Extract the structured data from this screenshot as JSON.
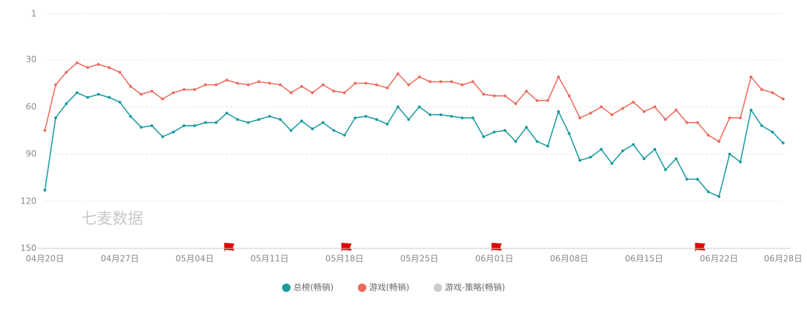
{
  "chart_data": {
    "type": "line",
    "watermark": "七麦数据",
    "categories": [
      "04月20日",
      null,
      null,
      null,
      null,
      null,
      null,
      "04月27日",
      null,
      null,
      null,
      null,
      null,
      null,
      "05月04日",
      null,
      null,
      null,
      null,
      null,
      null,
      "05月11日",
      null,
      null,
      null,
      null,
      null,
      null,
      "05月18日",
      null,
      null,
      null,
      null,
      null,
      null,
      "05月25日",
      null,
      null,
      null,
      null,
      null,
      null,
      "06月01日",
      null,
      null,
      null,
      null,
      null,
      null,
      "06月08日",
      null,
      null,
      null,
      null,
      null,
      null,
      "06月15日",
      null,
      null,
      null,
      null,
      null,
      null,
      "06月22日",
      null,
      null,
      null,
      null,
      null,
      "06月28日"
    ],
    "series": [
      {
        "name": "总榜(畅销)",
        "color": "#1a9ba0",
        "values": [
          113,
          67,
          58,
          51,
          54,
          52,
          54,
          57,
          66,
          73,
          72,
          79,
          76,
          72,
          72,
          70,
          70,
          64,
          68,
          70,
          68,
          66,
          68,
          75,
          69,
          74,
          70,
          75,
          78,
          67,
          66,
          68,
          71,
          60,
          68,
          60,
          65,
          65,
          66,
          67,
          67,
          79,
          76,
          75,
          82,
          73,
          82,
          85,
          63,
          77,
          94,
          92,
          87,
          96,
          88,
          84,
          93,
          87,
          100,
          93,
          106,
          106,
          114,
          117,
          90,
          95,
          62,
          72,
          76,
          83
        ]
      },
      {
        "name": "游戏(畅销)",
        "color": "#ec6b5e",
        "values": [
          75,
          46,
          38,
          32,
          35,
          33,
          35,
          38,
          47,
          52,
          50,
          55,
          51,
          49,
          49,
          46,
          46,
          43,
          45,
          46,
          44,
          45,
          46,
          51,
          47,
          51,
          46,
          50,
          51,
          45,
          45,
          46,
          48,
          39,
          46,
          41,
          44,
          44,
          44,
          46,
          44,
          52,
          53,
          53,
          58,
          50,
          56,
          56,
          41,
          53,
          67,
          64,
          60,
          65,
          61,
          57,
          63,
          60,
          68,
          62,
          70,
          70,
          78,
          82,
          67,
          67,
          41,
          49,
          51,
          55
        ]
      },
      {
        "name": "游戏-策略(畅销)",
        "color": "#cccccc",
        "values": [
          null,
          null,
          null,
          null,
          null,
          null,
          null,
          null,
          null,
          null,
          null,
          null,
          null,
          null,
          null,
          null,
          null,
          null,
          null,
          null,
          null,
          null,
          null,
          null,
          null,
          null,
          null,
          null,
          null,
          null,
          null,
          null,
          null,
          null,
          null,
          null,
          null,
          null,
          null,
          null,
          null,
          null,
          null,
          null,
          null,
          null,
          null,
          null,
          null,
          null,
          null,
          null,
          null,
          null,
          null,
          null,
          null,
          null,
          null,
          null,
          null,
          null,
          null,
          null,
          null,
          null,
          null,
          null,
          null,
          null
        ]
      }
    ],
    "ylim": [
      1,
      150
    ],
    "y_inverted": true,
    "yticks": [
      1,
      30,
      60,
      90,
      120,
      150
    ],
    "grid": true
  }
}
